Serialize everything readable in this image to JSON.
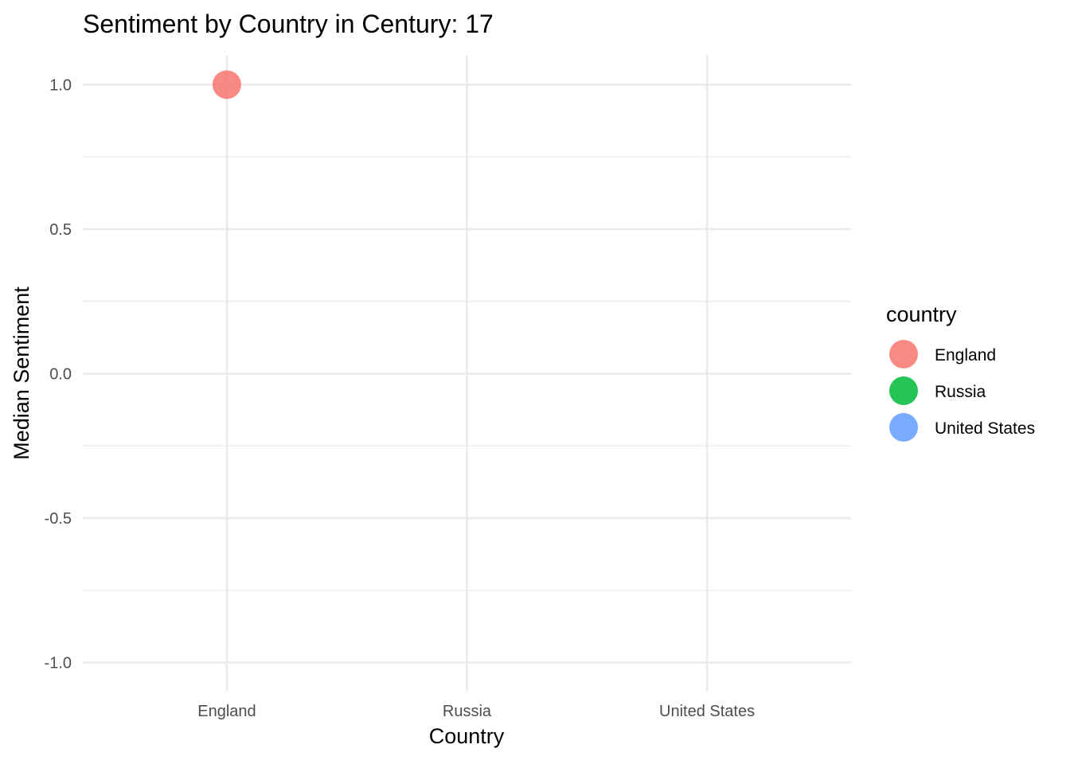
{
  "chart_data": {
    "type": "scatter",
    "title": "Sentiment by Country in Century: 17",
    "xlabel": "Country",
    "ylabel": "Median Sentiment",
    "categories": [
      "England",
      "Russia",
      "United States"
    ],
    "ylim": [
      -1.1,
      1.1
    ],
    "yticks": [
      -1.0,
      -0.5,
      0.0,
      0.5,
      1.0
    ],
    "ytick_labels": [
      "-1.0",
      "-0.5",
      "0.0",
      "0.5",
      "1.0"
    ],
    "grid": true,
    "legend": {
      "title": "country",
      "placement": "right",
      "entries": [
        {
          "label": "England",
          "color": "#F8766D"
        },
        {
          "label": "Russia",
          "color": "#00BA38"
        },
        {
          "label": "United States",
          "color": "#619CFF"
        }
      ]
    },
    "points": [
      {
        "x": "England",
        "y": 1.0,
        "color": "#F8766D"
      }
    ]
  }
}
